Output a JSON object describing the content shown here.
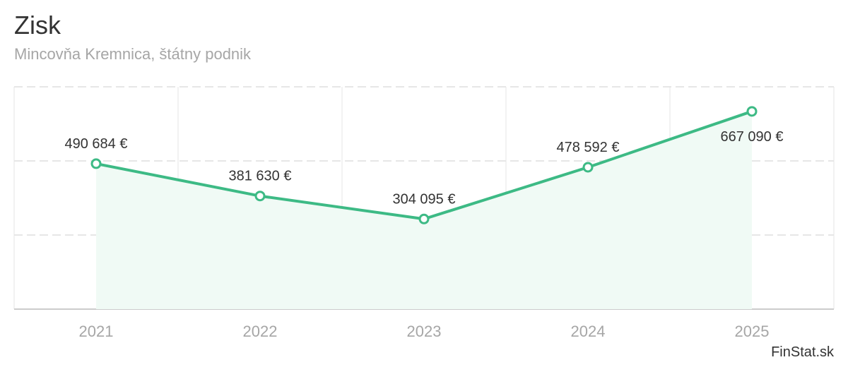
{
  "header": {
    "title": "Zisk",
    "subtitle": "Mincovňa Kremnica, štátny podnik"
  },
  "credit": "FinStat.sk",
  "colors": {
    "line": "#3dba85",
    "area": "#f0faf5",
    "grid": "#e6e6e6",
    "axis": "#cccccc",
    "label": "#333333",
    "tick": "#a6a6a6"
  },
  "chart_data": {
    "type": "area",
    "categories": [
      "2021",
      "2022",
      "2023",
      "2024",
      "2025"
    ],
    "series": [
      {
        "values": [
          490684,
          381630,
          304095,
          478592,
          667090
        ],
        "labels": [
          "490 684 €",
          "381 630 €",
          "304 095 €",
          "478 592 €",
          "667 090 €"
        ]
      }
    ],
    "ylim": [
      0,
      750000
    ],
    "grid": true,
    "legend": "none"
  }
}
